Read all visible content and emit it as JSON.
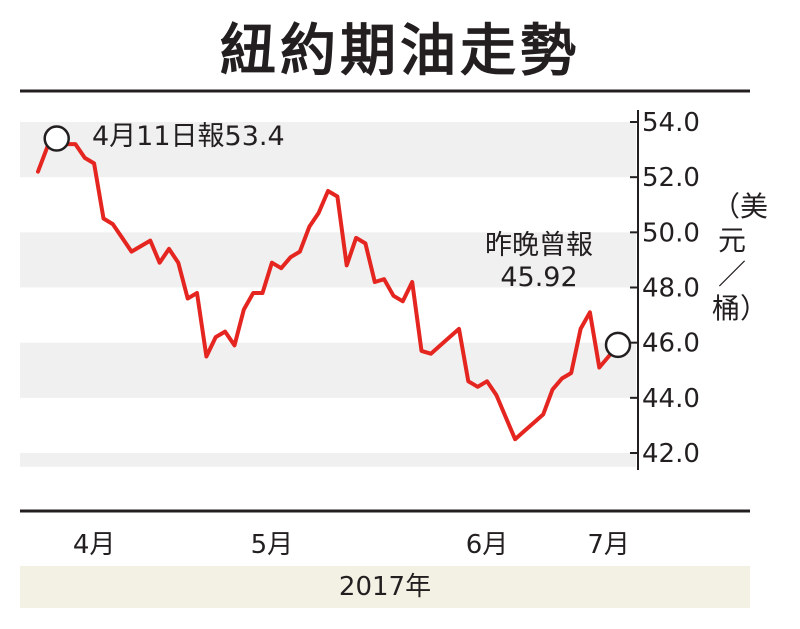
{
  "title": "紐約期油走勢",
  "unit_label": "（美元／桶）",
  "year_label": "2017年",
  "annotations": {
    "peak": "4月11日報53.4",
    "last_line1": "昨晚曾報",
    "last_line2": "45.92"
  },
  "colors": {
    "line": "#e52520",
    "band": "#f0f0f0",
    "year_band": "#f3f0e4",
    "text": "#231f20"
  },
  "chart_data": {
    "type": "line",
    "title": "紐約期油走勢",
    "xlabel": "2017年",
    "ylabel": "美元／桶",
    "ylim": [
      41.5,
      54.5
    ],
    "yticks": [
      54.0,
      52.0,
      50.0,
      48.0,
      46.0,
      44.0,
      42.0
    ],
    "ytick_labels": [
      "54.0",
      "52.0",
      "50.0",
      "48.0",
      "46.0",
      "44.0",
      "42.0"
    ],
    "xticks": [
      {
        "label": "4月",
        "index": 6
      },
      {
        "label": "5月",
        "index": 25
      },
      {
        "label": "6月",
        "index": 48
      },
      {
        "label": "7月",
        "index": 61
      }
    ],
    "grid": "alternating horizontal bands",
    "series": [
      {
        "values": [
          52.2,
          53.1,
          53.4,
          53.2,
          53.2,
          52.7,
          52.5,
          50.5,
          50.3,
          49.8,
          49.3,
          49.5,
          49.7,
          48.9,
          49.4,
          48.9,
          47.6,
          47.8,
          45.5,
          46.2,
          46.4,
          45.9,
          47.2,
          47.8,
          47.8,
          48.9,
          48.7,
          49.1,
          49.3,
          50.2,
          50.7,
          51.5,
          51.3,
          48.8,
          49.8,
          49.6,
          48.2,
          48.3,
          47.7,
          47.5,
          48.2,
          45.7,
          45.6,
          45.9,
          46.2,
          46.5,
          44.6,
          44.4,
          44.6,
          44.1,
          43.3,
          42.5,
          42.8,
          43.1,
          43.4,
          44.3,
          44.7,
          44.9,
          46.5,
          47.1,
          45.1,
          45.5,
          45.92
        ]
      }
    ],
    "markers": [
      {
        "index": 2,
        "value": 53.4,
        "label": "4月11日報53.4"
      },
      {
        "index": 62,
        "value": 45.92,
        "label": "昨晚曾報 45.92"
      }
    ]
  }
}
